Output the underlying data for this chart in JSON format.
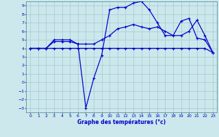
{
  "title": "Graphe des températures (°c)",
  "bg_color": "#cce8ec",
  "grid_color": "#aaccd4",
  "line_color": "#0000cc",
  "spine_color": "#6699aa",
  "ylim": [
    -3.5,
    9.5
  ],
  "xlim": [
    -0.5,
    23.5
  ],
  "yticks": [
    -3,
    -2,
    -1,
    0,
    1,
    2,
    3,
    4,
    5,
    6,
    7,
    8,
    9
  ],
  "xticks": [
    0,
    1,
    2,
    3,
    4,
    5,
    6,
    7,
    8,
    9,
    10,
    11,
    12,
    13,
    14,
    15,
    16,
    17,
    18,
    19,
    20,
    21,
    22,
    23
  ],
  "curve1_x": [
    0,
    1,
    2,
    3,
    4,
    5,
    6,
    7,
    8,
    9,
    10,
    11,
    12,
    13,
    14,
    15,
    16,
    17,
    18,
    19,
    20,
    21,
    22,
    23
  ],
  "curve1_y": [
    4,
    4,
    4,
    4,
    4,
    4,
    4,
    4,
    4,
    4,
    4,
    4,
    4,
    4,
    4,
    4,
    4,
    4,
    4,
    4,
    4,
    4,
    4,
    3.5
  ],
  "curve2_x": [
    0,
    1,
    2,
    3,
    4,
    5,
    6,
    7,
    8,
    9,
    10,
    11,
    12,
    13,
    14,
    15,
    16,
    17,
    18,
    19,
    20,
    21,
    22,
    23
  ],
  "curve2_y": [
    4,
    4,
    4,
    5,
    5,
    5,
    4.5,
    -3,
    0.5,
    3.2,
    8.5,
    8.8,
    8.8,
    9.3,
    9.5,
    8.5,
    7,
    5.5,
    5.5,
    7.2,
    7.5,
    5.2,
    5,
    3.5
  ],
  "curve3_x": [
    0,
    1,
    2,
    3,
    4,
    5,
    6,
    7,
    8,
    9,
    10,
    11,
    12,
    13,
    14,
    15,
    16,
    17,
    18,
    19,
    20,
    21,
    22,
    23
  ],
  "curve3_y": [
    4,
    4,
    4,
    4.8,
    4.8,
    4.8,
    4.5,
    4.5,
    4.5,
    5,
    5.5,
    6.3,
    6.5,
    6.8,
    6.5,
    6.3,
    6.5,
    6,
    5.5,
    5.5,
    6,
    7.3,
    5.5,
    3.5
  ]
}
